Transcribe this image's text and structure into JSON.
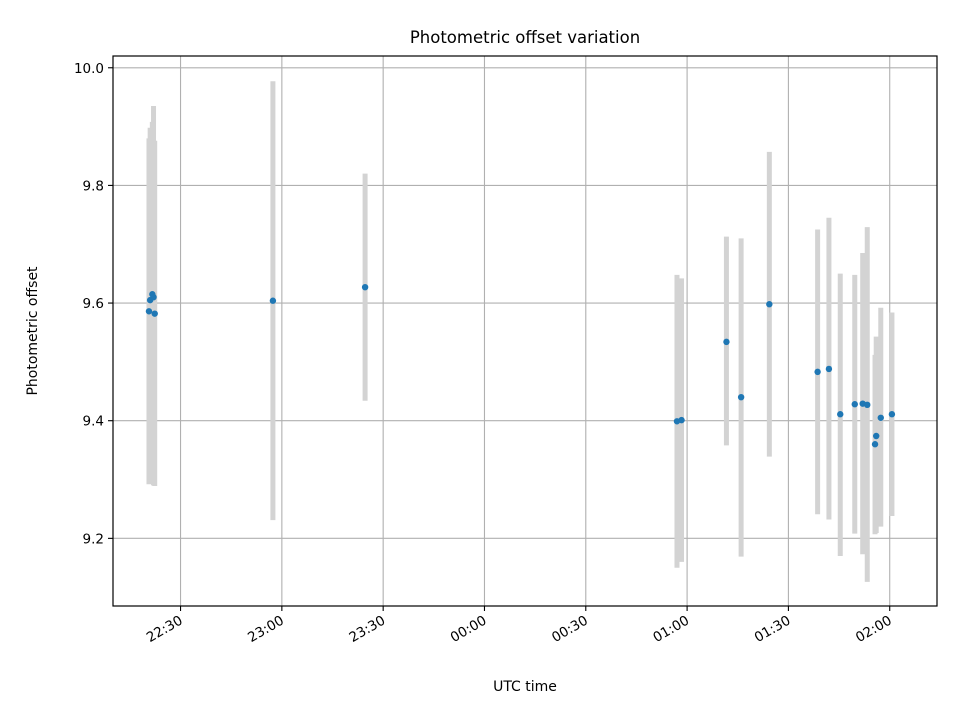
{
  "chart_data": {
    "type": "scatter",
    "title": "Photometric offset variation",
    "xlabel": "UTC time",
    "ylabel": "Photometric offset",
    "xlim": [
      "22:10",
      "02:14"
    ],
    "ylim": [
      9.085,
      10.02
    ],
    "x_ticks": [
      "22:30",
      "23:00",
      "23:30",
      "00:00",
      "00:30",
      "01:00",
      "01:30",
      "02:00"
    ],
    "y_ticks": [
      "9.2",
      "9.4",
      "9.6",
      "9.8",
      "10.0"
    ],
    "grid": true,
    "marker_color": "#1f77b4",
    "errorbar_color": "#d3d3d3",
    "points": [
      {
        "t": "22:21",
        "y": 9.586,
        "lo": 9.292,
        "hi": 9.88
      },
      {
        "t": "22:21",
        "y": 9.605,
        "lo": 9.311,
        "hi": 9.898
      },
      {
        "t": "22:22",
        "y": 9.582,
        "lo": 9.289,
        "hi": 9.876
      },
      {
        "t": "22:22",
        "y": 9.615,
        "lo": 9.321,
        "hi": 9.908
      },
      {
        "t": "22:22",
        "y": 9.61,
        "lo": 9.29,
        "hi": 9.935
      },
      {
        "t": "22:57",
        "y": 9.604,
        "lo": 9.231,
        "hi": 9.977
      },
      {
        "t": "23:25",
        "y": 9.627,
        "lo": 9.434,
        "hi": 9.82
      },
      {
        "t": "00:57",
        "y": 9.399,
        "lo": 9.15,
        "hi": 9.648
      },
      {
        "t": "00:58",
        "y": 9.401,
        "lo": 9.16,
        "hi": 9.642
      },
      {
        "t": "01:12",
        "y": 9.534,
        "lo": 9.358,
        "hi": 9.713
      },
      {
        "t": "01:16",
        "y": 9.44,
        "lo": 9.169,
        "hi": 9.71
      },
      {
        "t": "01:24",
        "y": 9.598,
        "lo": 9.339,
        "hi": 9.857
      },
      {
        "t": "01:39",
        "y": 9.483,
        "lo": 9.241,
        "hi": 9.725
      },
      {
        "t": "01:42",
        "y": 9.488,
        "lo": 9.232,
        "hi": 9.745
      },
      {
        "t": "01:45",
        "y": 9.411,
        "lo": 9.17,
        "hi": 9.65
      },
      {
        "t": "01:50",
        "y": 9.428,
        "lo": 9.208,
        "hi": 9.648
      },
      {
        "t": "01:52",
        "y": 9.429,
        "lo": 9.173,
        "hi": 9.685
      },
      {
        "t": "01:53",
        "y": 9.427,
        "lo": 9.126,
        "hi": 9.729
      },
      {
        "t": "01:56",
        "y": 9.36,
        "lo": 9.207,
        "hi": 9.512
      },
      {
        "t": "01:56",
        "y": 9.374,
        "lo": 9.209,
        "hi": 9.543
      },
      {
        "t": "01:57",
        "y": 9.405,
        "lo": 9.22,
        "hi": 9.592
      },
      {
        "t": "02:01",
        "y": 9.411,
        "lo": 9.238,
        "hi": 9.584
      }
    ]
  }
}
